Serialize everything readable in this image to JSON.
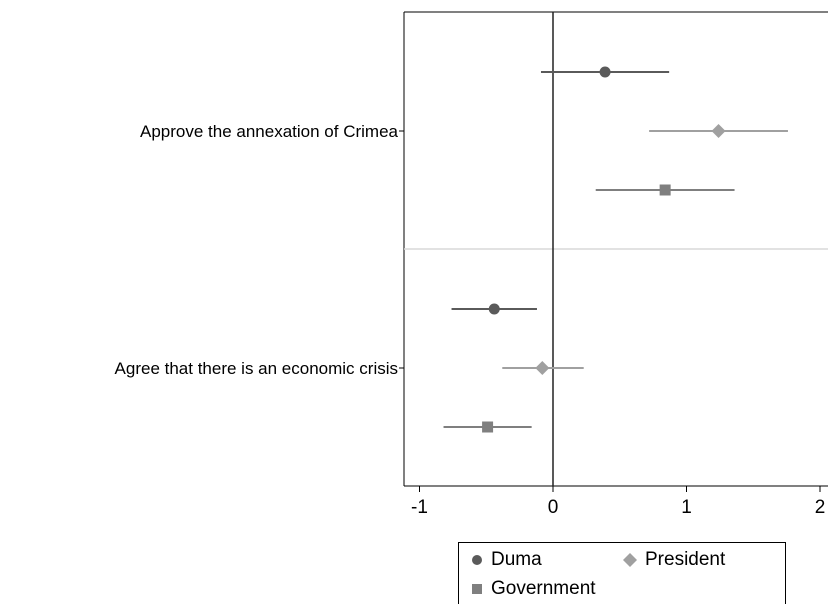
{
  "chart_data": {
    "type": "scatter",
    "subtype": "coefficient-plot-with-confidence-intervals",
    "title": "",
    "xlabel": "",
    "ylabel": "",
    "xlim": [
      -1.1,
      2.02
    ],
    "x_ticks": [
      -1,
      0,
      1,
      2
    ],
    "x_tick_labels": [
      "-1",
      "0",
      "1",
      "2"
    ],
    "reference_line_x": 0,
    "categories": [
      "Approve the annexation of Crimea",
      "Agree that there is an economic crisis"
    ],
    "series": [
      {
        "name": "Duma",
        "marker": "circle",
        "color": "#5a5a5a",
        "estimates": [
          0.39,
          -0.44
        ],
        "ci_low": [
          -0.09,
          -0.76
        ],
        "ci_high": [
          0.87,
          -0.12
        ]
      },
      {
        "name": "President",
        "marker": "diamond",
        "color": "#a0a0a0",
        "estimates": [
          1.24,
          -0.08
        ],
        "ci_low": [
          0.72,
          -0.38
        ],
        "ci_high": [
          1.76,
          0.23
        ]
      },
      {
        "name": "Government",
        "marker": "square",
        "color": "#7f7f7f",
        "estimates": [
          0.84,
          -0.49
        ],
        "ci_low": [
          0.32,
          -0.82
        ],
        "ci_high": [
          1.36,
          -0.16
        ]
      }
    ],
    "grid": false,
    "legend": {
      "placement": "bottom"
    }
  }
}
